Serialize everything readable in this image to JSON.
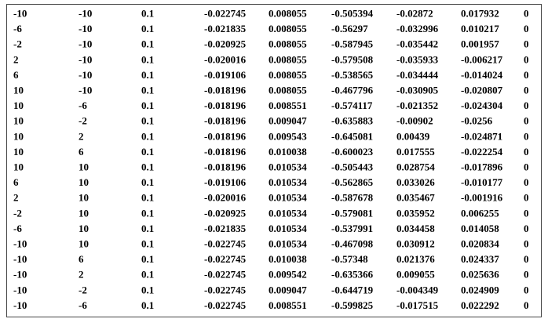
{
  "table": {
    "rows": [
      [
        "-10",
        "-10",
        "0.1",
        "-0.022745",
        "0.008055",
        "-0.505394",
        "-0.02872",
        "0.017932",
        "0"
      ],
      [
        "-6",
        "-10",
        "0.1",
        "-0.021835",
        "0.008055",
        "-0.56297",
        "-0.032996",
        "0.010217",
        "0"
      ],
      [
        "-2",
        "-10",
        "0.1",
        "-0.020925",
        "0.008055",
        "-0.587945",
        "-0.035442",
        "0.001957",
        "0"
      ],
      [
        "2",
        "-10",
        "0.1",
        "-0.020016",
        "0.008055",
        "-0.579508",
        "-0.035933",
        "-0.006217",
        "0"
      ],
      [
        "6",
        "-10",
        "0.1",
        "-0.019106",
        "0.008055",
        "-0.538565",
        "-0.034444",
        "-0.014024",
        "0"
      ],
      [
        "10",
        "-10",
        "0.1",
        "-0.018196",
        "0.008055",
        "-0.467796",
        "-0.030905",
        "-0.020807",
        "0"
      ],
      [
        "10",
        "-6",
        "0.1",
        "-0.018196",
        "0.008551",
        "-0.574117",
        "-0.021352",
        "-0.024304",
        "0"
      ],
      [
        "10",
        "-2",
        "0.1",
        "-0.018196",
        "0.009047",
        "-0.635883",
        "-0.00902",
        "-0.0256",
        "0"
      ],
      [
        "10",
        "2",
        "0.1",
        "-0.018196",
        "0.009543",
        "-0.645081",
        "0.00439",
        "-0.024871",
        "0"
      ],
      [
        "10",
        "6",
        "0.1",
        "-0.018196",
        "0.010038",
        "-0.600023",
        "0.017555",
        "-0.022254",
        "0"
      ],
      [
        "10",
        "10",
        "0.1",
        "-0.018196",
        "0.010534",
        "-0.505443",
        "0.028754",
        "-0.017896",
        "0"
      ],
      [
        "6",
        "10",
        "0.1",
        "-0.019106",
        "0.010534",
        "-0.562865",
        "0.033026",
        "-0.010177",
        "0"
      ],
      [
        "2",
        "10",
        "0.1",
        "-0.020016",
        "0.010534",
        "-0.587678",
        "0.035467",
        "-0.001916",
        "0"
      ],
      [
        "-2",
        "10",
        "0.1",
        "-0.020925",
        "0.010534",
        "-0.579081",
        "0.035952",
        "0.006255",
        "0"
      ],
      [
        "-6",
        "10",
        "0.1",
        "-0.021835",
        "0.010534",
        "-0.537991",
        "0.034458",
        "0.014058",
        "0"
      ],
      [
        "-10",
        "10",
        "0.1",
        "-0.022745",
        "0.010534",
        "-0.467098",
        "0.030912",
        "0.020834",
        "0"
      ],
      [
        "-10",
        "6",
        "0.1",
        "-0.022745",
        "0.010038",
        "-0.57348",
        "0.021376",
        "0.024337",
        "0"
      ],
      [
        "-10",
        "2",
        "0.1",
        "-0.022745",
        "0.009542",
        "-0.635366",
        "0.009055",
        "0.025636",
        "0"
      ],
      [
        "-10",
        "-2",
        "0.1",
        "-0.022745",
        "0.009047",
        "-0.644719",
        "-0.004349",
        "0.024909",
        "0"
      ],
      [
        "-10",
        "-6",
        "0.1",
        "-0.022745",
        "0.008551",
        "-0.599825",
        "-0.017515",
        "0.022292",
        "0"
      ]
    ]
  }
}
